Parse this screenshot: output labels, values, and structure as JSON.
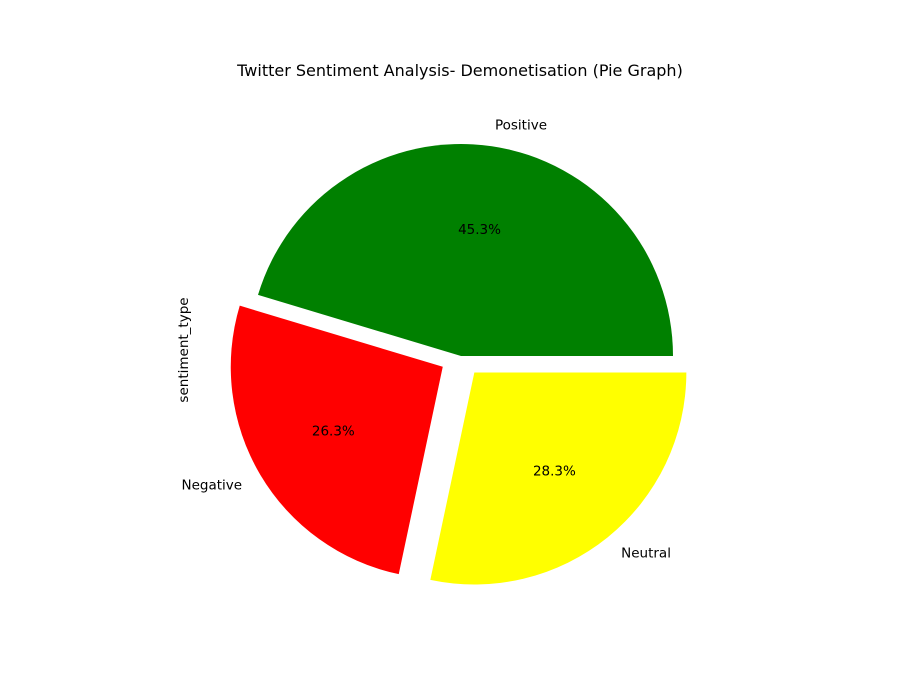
{
  "chart_data": {
    "type": "pie",
    "title": "Twitter Sentiment Analysis- Demonetisation (Pie Graph)",
    "ylabel": "sentiment_type",
    "slices": [
      {
        "label": "Positive",
        "value": 45.3,
        "pct_label": "45.3%",
        "color": "#008000",
        "exploded": false
      },
      {
        "label": "Negative",
        "value": 26.3,
        "pct_label": "26.3%",
        "color": "#ff0000",
        "exploded": true
      },
      {
        "label": "Neutral",
        "value": 28.3,
        "pct_label": "28.3%",
        "color": "#ffff00",
        "exploded": true
      }
    ]
  }
}
